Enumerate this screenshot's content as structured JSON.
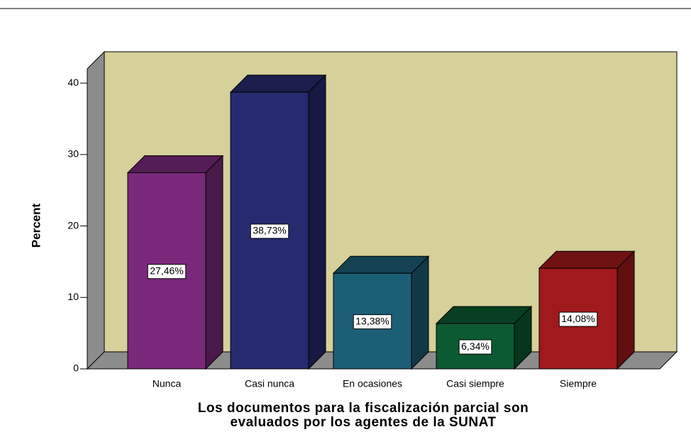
{
  "chart_data": {
    "type": "bar3d",
    "xlabel": [
      "Los documentos para la fiscalización parcial son",
      "evaluados por los agentes de la SUNAT"
    ],
    "ylabel": "Percent",
    "categories": [
      "Nunca",
      "Casi nunca",
      "En ocasiones",
      "Casi siempre",
      "Siempre"
    ],
    "values": [
      27.46,
      38.73,
      13.38,
      6.34,
      14.08
    ],
    "value_labels": [
      "27,46%",
      "38,73%",
      "13,38%",
      "6,34%",
      "14,08%"
    ],
    "colors": [
      "#7a297a",
      "#262a6f",
      "#1d5e77",
      "#0c5a31",
      "#a0191d"
    ],
    "wall_color": "#d6d09b",
    "ylim": [
      0,
      42
    ],
    "yticks": [
      0,
      10,
      20,
      30,
      40
    ]
  }
}
